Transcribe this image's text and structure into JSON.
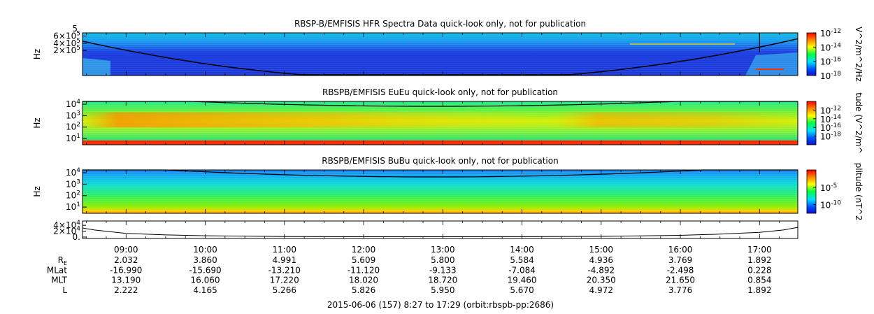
{
  "chart_data": [
    {
      "type": "heatmap",
      "title": "RBSP-B/EMFISIS  HFR Spectra Data quick-look only, not for publication",
      "ylabel": "Hz",
      "y_scale": "linear",
      "ytick_labels": [
        {
          "label": "6×10",
          "exp": "5",
          "v": 600000
        },
        {
          "label": "4×10",
          "exp": "5",
          "v": 400000
        },
        {
          "label": "2×10",
          "exp": "5",
          "v": 200000
        }
      ],
      "axis_top_exp": "5",
      "colorbar": {
        "label": "V^2/m^2/Hz",
        "ticks": [
          {
            "label": "10",
            "exp": "-12",
            "f": 0.0
          },
          {
            "label": "10",
            "exp": "-14",
            "f": 0.333
          },
          {
            "label": "10",
            "exp": "-16",
            "f": 0.667
          },
          {
            "label": "10",
            "exp": "-18",
            "f": 1.0
          }
        ]
      }
    },
    {
      "type": "heatmap",
      "title": "RBSPB/EMFISIS  EuEu quick-look only, not for publication",
      "ylabel": "Hz",
      "y_scale": "log",
      "ytick_labels": [
        {
          "label": "10",
          "exp": "4",
          "v": 4
        },
        {
          "label": "10",
          "exp": "3",
          "v": 3
        },
        {
          "label": "10",
          "exp": "2",
          "v": 2
        },
        {
          "label": "10",
          "exp": "1",
          "v": 1
        }
      ],
      "colorbar": {
        "label": "tude (V^2/m^",
        "ticks": [
          {
            "label": "10",
            "exp": "-12",
            "f": 0.2
          },
          {
            "label": "10",
            "exp": "-14",
            "f": 0.4
          },
          {
            "label": "10",
            "exp": "-16",
            "f": 0.6
          },
          {
            "label": "10",
            "exp": "-18",
            "f": 0.8
          }
        ]
      }
    },
    {
      "type": "heatmap",
      "title": "RBSPB/EMFISIS  BuBu quick-look only, not for publication",
      "ylabel": "Hz",
      "y_scale": "log",
      "ytick_labels": [
        {
          "label": "10",
          "exp": "4",
          "v": 4
        },
        {
          "label": "10",
          "exp": "3",
          "v": 3
        },
        {
          "label": "10",
          "exp": "2",
          "v": 2
        },
        {
          "label": "10",
          "exp": "1",
          "v": 1
        }
      ],
      "colorbar": {
        "label": "plitude (nT^2",
        "ticks": [
          {
            "label": "10",
            "exp": "-5",
            "f": 0.4
          },
          {
            "label": "10",
            "exp": "-10",
            "f": 0.8
          }
        ]
      }
    },
    {
      "type": "line",
      "ytick_labels": [
        {
          "label": "4×10",
          "exp": "4",
          "v": 40000
        },
        {
          "label": "2×10",
          "exp": "4",
          "v": 20000
        },
        {
          "label": "0.",
          "exp": "",
          "v": 0
        }
      ],
      "ylim": [
        0,
        50000
      ],
      "x": [
        8.45,
        8.6,
        9.0,
        9.5,
        10.0,
        11.0,
        12.0,
        13.0,
        14.0,
        15.0,
        16.0,
        16.5,
        17.0,
        17.3,
        17.48
      ],
      "values": [
        31000,
        24000,
        12500,
        7500,
        4500,
        2000,
        1300,
        1200,
        1400,
        2300,
        6000,
        10000,
        16000,
        24000,
        33000
      ]
    }
  ],
  "time_axis": {
    "xlim": [
      8.45,
      17.483
    ],
    "hour_labels": [
      "09:00",
      "10:00",
      "11:00",
      "12:00",
      "13:00",
      "14:00",
      "15:00",
      "16:00",
      "17:00"
    ],
    "hour_values": [
      9,
      10,
      11,
      12,
      13,
      14,
      15,
      16,
      17
    ]
  },
  "ephemeris": [
    {
      "label": "R",
      "sub": "E",
      "values": [
        "2.032",
        "3.860",
        "4.991",
        "5.609",
        "5.800",
        "5.584",
        "4.936",
        "3.769",
        "1.892"
      ]
    },
    {
      "label": "MLat",
      "sub": "",
      "values": [
        "-16.990",
        "-15.690",
        "-13.210",
        "-11.120",
        "-9.133",
        "-7.084",
        "-4.892",
        "-2.498",
        "0.228"
      ]
    },
    {
      "label": "MLT",
      "sub": "",
      "values": [
        "13.190",
        "16.060",
        "17.220",
        "18.020",
        "18.720",
        "19.460",
        "20.350",
        "21.650",
        "0.854"
      ]
    },
    {
      "label": "L",
      "sub": "",
      "values": [
        "2.222",
        "4.165",
        "5.266",
        "5.826",
        "5.950",
        "5.670",
        "4.972",
        "3.776",
        "1.892"
      ]
    }
  ],
  "footer": "2015-06-06 (157) 8:27 to 17:29 (orbit:rbspb-pp:2686)"
}
